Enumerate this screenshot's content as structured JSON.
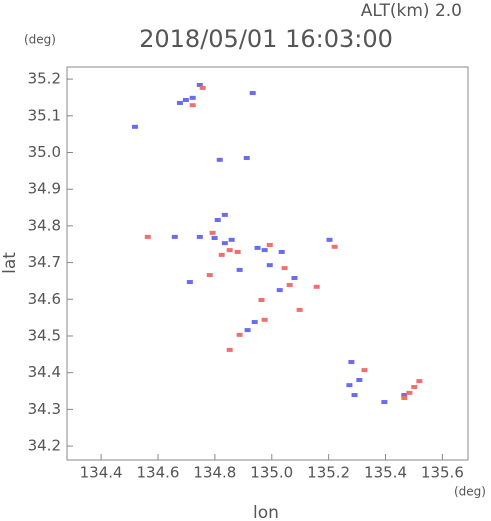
{
  "chart_data": {
    "type": "scatter",
    "title": "2018/05/01 16:03:00",
    "subtitle": "ALT(km) 2.0",
    "x_label": "lon",
    "y_label": "lat",
    "x_unit": "(deg)",
    "y_unit": "(deg)",
    "xlim": [
      134.28,
      135.69
    ],
    "ylim": [
      34.162,
      35.233
    ],
    "xticks": [
      134.4,
      134.6,
      134.8,
      {
        "value": 135.0,
        "label": "135.0"
      },
      135.2,
      135.4,
      135.6
    ],
    "yticks": [
      34.2,
      34.3,
      34.4,
      34.5,
      34.6,
      34.7,
      34.8,
      34.9,
      {
        "value": 35.0,
        "label": "35.0"
      },
      35.1,
      35.2
    ],
    "series": [
      {
        "color": "#6b6bf0",
        "x": [
          134.677,
          134.698,
          134.722,
          134.747,
          134.519,
          134.933,
          134.817,
          134.912,
          134.835,
          134.799,
          134.835,
          134.859,
          134.95,
          134.975,
          134.993,
          135.035,
          135.08,
          135.028,
          134.915,
          134.94,
          134.712,
          134.659,
          135.203,
          135.273,
          135.291,
          135.308,
          135.28,
          135.466,
          135.396,
          134.747,
          134.81,
          134.887
        ],
        "values": [
          35.135,
          35.143,
          35.149,
          35.184,
          35.07,
          35.162,
          34.98,
          34.985,
          34.83,
          34.767,
          34.753,
          34.762,
          34.74,
          34.734,
          34.693,
          34.729,
          34.658,
          34.625,
          34.516,
          34.538,
          34.647,
          34.77,
          34.762,
          34.366,
          34.339,
          34.38,
          34.429,
          34.339,
          34.32,
          34.77,
          34.816,
          34.68
        ]
      },
      {
        "color": "#f07070",
        "x": [
          134.722,
          134.757,
          134.792,
          134.852,
          134.88,
          134.993,
          135.063,
          134.975,
          135.098,
          135.158,
          134.852,
          134.782,
          134.564,
          135.484,
          135.501,
          135.519,
          135.466,
          135.326,
          135.221,
          134.887,
          134.964,
          135.045,
          134.824
        ],
        "values": [
          35.129,
          35.176,
          34.781,
          34.734,
          34.729,
          34.748,
          34.639,
          34.544,
          34.571,
          34.634,
          34.462,
          34.666,
          34.77,
          34.345,
          34.361,
          34.377,
          34.331,
          34.407,
          34.743,
          34.503,
          34.598,
          34.685,
          34.721
        ]
      }
    ]
  }
}
